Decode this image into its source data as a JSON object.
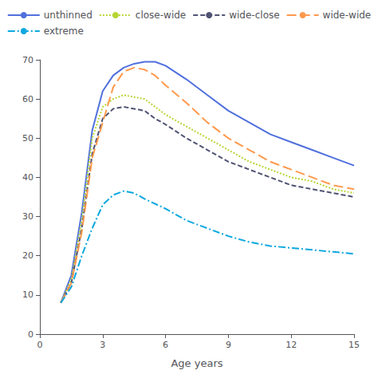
{
  "chart_data": {
    "type": "line",
    "xlabel": "Age years",
    "xlim": [
      0,
      15
    ],
    "ylim": [
      0,
      70
    ],
    "xticks": [
      0,
      3,
      6,
      9,
      12,
      15
    ],
    "yticks": [
      0,
      10,
      20,
      30,
      40,
      50,
      60,
      70
    ],
    "grid": false,
    "legend": "top",
    "series": [
      {
        "name": "unthinned",
        "line_style": "solid",
        "x": [
          1.0,
          1.5,
          2.0,
          2.5,
          3.0,
          3.5,
          4.0,
          4.5,
          5.0,
          5.5,
          6.0,
          7.0,
          8.0,
          9.0,
          10.0,
          11.0,
          12.0,
          13.0,
          14.0,
          15.0
        ],
        "values": [
          8,
          15,
          31,
          52,
          62,
          66,
          68,
          69,
          69.5,
          69.5,
          68.5,
          65,
          61,
          57,
          54,
          51,
          49,
          47,
          45,
          43
        ]
      },
      {
        "name": "close-wide",
        "line_style": "dotted",
        "x": [
          1.0,
          1.5,
          2.0,
          2.5,
          3.0,
          3.5,
          4.0,
          4.5,
          5.0,
          5.5,
          6.0,
          7.0,
          8.0,
          9.0,
          10.0,
          11.0,
          12.0,
          13.0,
          14.0,
          15.0
        ],
        "values": [
          8,
          14,
          29,
          50,
          58,
          60,
          61,
          60.5,
          60,
          58,
          56,
          53,
          50,
          47,
          44,
          42,
          40,
          39,
          37,
          36
        ]
      },
      {
        "name": "wide-close",
        "line_style": "dashed",
        "x": [
          1.0,
          1.5,
          2.0,
          2.5,
          3.0,
          3.5,
          4.0,
          4.5,
          5.0,
          5.5,
          6.0,
          7.0,
          8.0,
          9.0,
          10.0,
          11.0,
          12.0,
          13.0,
          14.0,
          15.0
        ],
        "values": [
          8,
          13,
          27,
          46,
          55,
          57.5,
          58,
          57.5,
          57,
          55,
          53.5,
          50,
          47,
          44,
          42,
          40,
          38,
          37,
          36,
          35
        ]
      },
      {
        "name": "wide-wide",
        "line_style": "longdash",
        "x": [
          1.0,
          1.5,
          2.0,
          2.5,
          3.0,
          3.5,
          4.0,
          4.5,
          5.0,
          5.5,
          6.0,
          7.0,
          8.0,
          9.0,
          10.0,
          11.0,
          12.0,
          13.0,
          14.0,
          15.0
        ],
        "values": [
          8,
          13,
          26,
          45,
          54,
          63,
          67,
          68,
          67.5,
          66,
          63.5,
          59,
          54,
          50,
          47,
          44,
          42,
          40,
          38,
          37
        ]
      },
      {
        "name": "extreme",
        "line_style": "dashdot",
        "x": [
          1.0,
          1.5,
          2.0,
          2.5,
          3.0,
          3.5,
          4.0,
          4.5,
          5.0,
          6.0,
          7.0,
          8.0,
          9.0,
          10.0,
          11.0,
          12.0,
          13.0,
          14.0,
          15.0
        ],
        "values": [
          8,
          12,
          20,
          27,
          33,
          35.5,
          36.5,
          36,
          34.5,
          32,
          29,
          27,
          25,
          23.5,
          22.5,
          22,
          21.5,
          21,
          20.5
        ]
      }
    ]
  }
}
